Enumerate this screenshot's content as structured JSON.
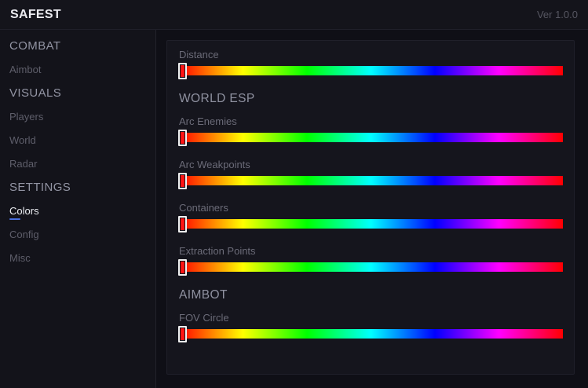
{
  "titlebar": {
    "title": "SAFEST",
    "version": "Ver 1.0.0"
  },
  "sidebar": {
    "sections": [
      {
        "label": "COMBAT",
        "items": [
          {
            "label": "Aimbot",
            "active": false
          }
        ]
      },
      {
        "label": "VISUALS",
        "items": [
          {
            "label": "Players",
            "active": false
          },
          {
            "label": "World",
            "active": false
          },
          {
            "label": "Radar",
            "active": false
          }
        ]
      },
      {
        "label": "SETTINGS",
        "items": [
          {
            "label": "Colors",
            "active": true
          },
          {
            "label": "Config",
            "active": false
          },
          {
            "label": "Misc",
            "active": false
          }
        ]
      }
    ]
  },
  "main": {
    "groups": [
      {
        "header": "",
        "sliders": [
          {
            "label": "Distance"
          }
        ]
      },
      {
        "header": "WORLD ESP",
        "sliders": [
          {
            "label": "Arc Enemies"
          },
          {
            "label": "Arc Weakpoints"
          },
          {
            "label": "Containers"
          },
          {
            "label": "Extraction Points"
          }
        ]
      },
      {
        "header": "AIMBOT",
        "sliders": [
          {
            "label": "FOV Circle"
          }
        ]
      }
    ]
  },
  "colors": {
    "accent": "#4a6fe0",
    "handle_fill": "#ff1414",
    "handle_border": "#f2f2f2",
    "gradient_stops": [
      "#ff0000",
      "#ffff00",
      "#00ff00",
      "#00ffff",
      "#0000ff",
      "#ff00ff",
      "#ff0000"
    ]
  }
}
